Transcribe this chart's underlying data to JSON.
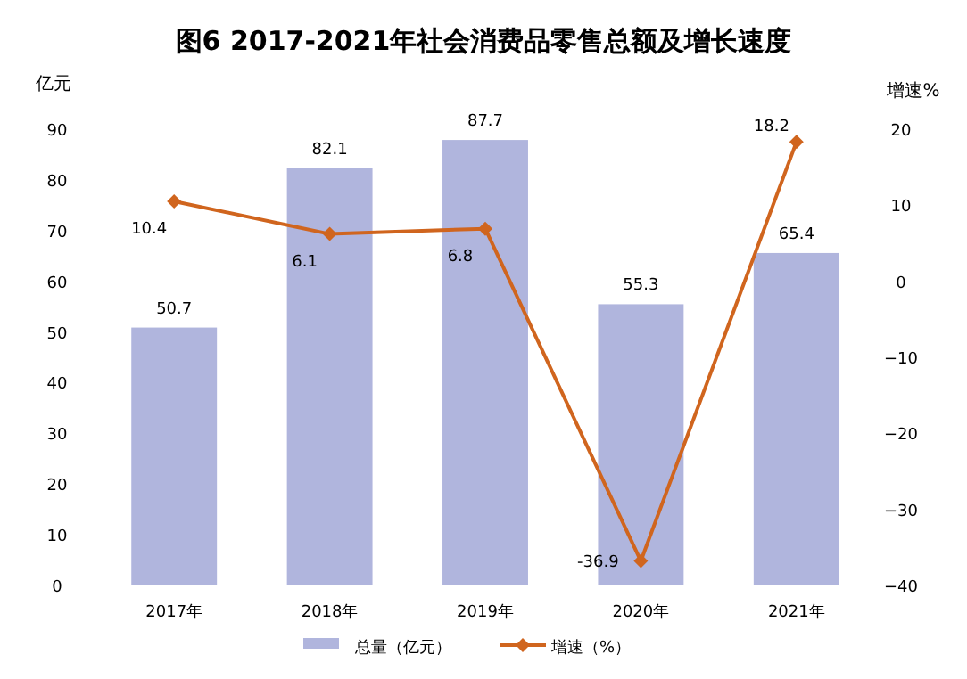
{
  "chart_data": {
    "type": "bar",
    "title": "图6 2017-2021年社会消费品零售总额及增长速度",
    "categories": [
      "2017年",
      "2018年",
      "2019年",
      "2020年",
      "2021年"
    ],
    "ylabel": "亿元",
    "y2label": "增速%",
    "ylim": [
      0,
      90
    ],
    "yticks": [
      0,
      10,
      20,
      30,
      40,
      50,
      60,
      70,
      80,
      90
    ],
    "y2lim": [
      -40,
      20
    ],
    "y2ticks": [
      -40,
      -30,
      -20,
      -10,
      0,
      10,
      20
    ],
    "series": [
      {
        "name": "总量（亿元）",
        "color": "#b0b5dd",
        "values": [
          50.7,
          82.1,
          87.7,
          55.3,
          65.4
        ]
      },
      {
        "name": "增速（%）",
        "type": "line",
        "axis": "y2",
        "color": "#d0651e",
        "marker": "diamond",
        "values": [
          10.4,
          6.1,
          6.8,
          -36.9,
          18.2
        ]
      }
    ],
    "data_labels": true,
    "grid": false,
    "legend": "bottom"
  }
}
